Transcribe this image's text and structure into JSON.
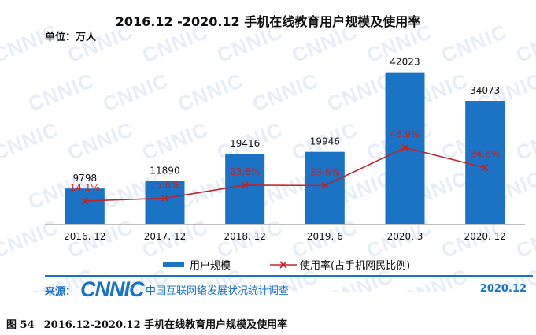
{
  "header": {
    "title": "2016.12 -2020.12 手机在线教育用户规模及使用率",
    "unit": "单位：万人"
  },
  "chart_data": {
    "type": "bar",
    "categories": [
      "2016. 12",
      "2017. 12",
      "2018. 12",
      "2019. 6",
      "2020. 3",
      "2020. 12"
    ],
    "series": [
      {
        "name": "用户规模",
        "kind": "bar",
        "color": "#1b73c6",
        "values": [
          9798,
          11890,
          19416,
          19946,
          42023,
          34073
        ]
      },
      {
        "name": "使用率(占手机网民比例)",
        "kind": "line",
        "color": "#c0232a",
        "values": [
          14.1,
          15.8,
          23.8,
          23.6,
          46.9,
          34.6
        ],
        "labels": [
          "14.1%",
          "15.8%",
          "23.8%",
          "23.6%",
          "46.9%",
          "34.6%"
        ]
      }
    ],
    "bar_labels": [
      "9798",
      "11890",
      "19416",
      "19946",
      "42023",
      "34073"
    ],
    "ylim": [
      0,
      45000
    ],
    "rate_ylim": [
      0,
      100
    ],
    "grid": false,
    "legend_position": "bottom"
  },
  "legend": {
    "bar_label": "用户规模",
    "line_label": "使用率(占手机网民比例)"
  },
  "footer": {
    "source_label": "来源：",
    "logo_text": "CNNIC",
    "source_name": "中国互联网络发展状况统计调查",
    "date": "2020.12"
  },
  "caption": {
    "number": "图 54",
    "text": "2016.12-2020.12 手机在线教育用户规模及使用率"
  },
  "watermark": {
    "text": "CNNIC"
  }
}
